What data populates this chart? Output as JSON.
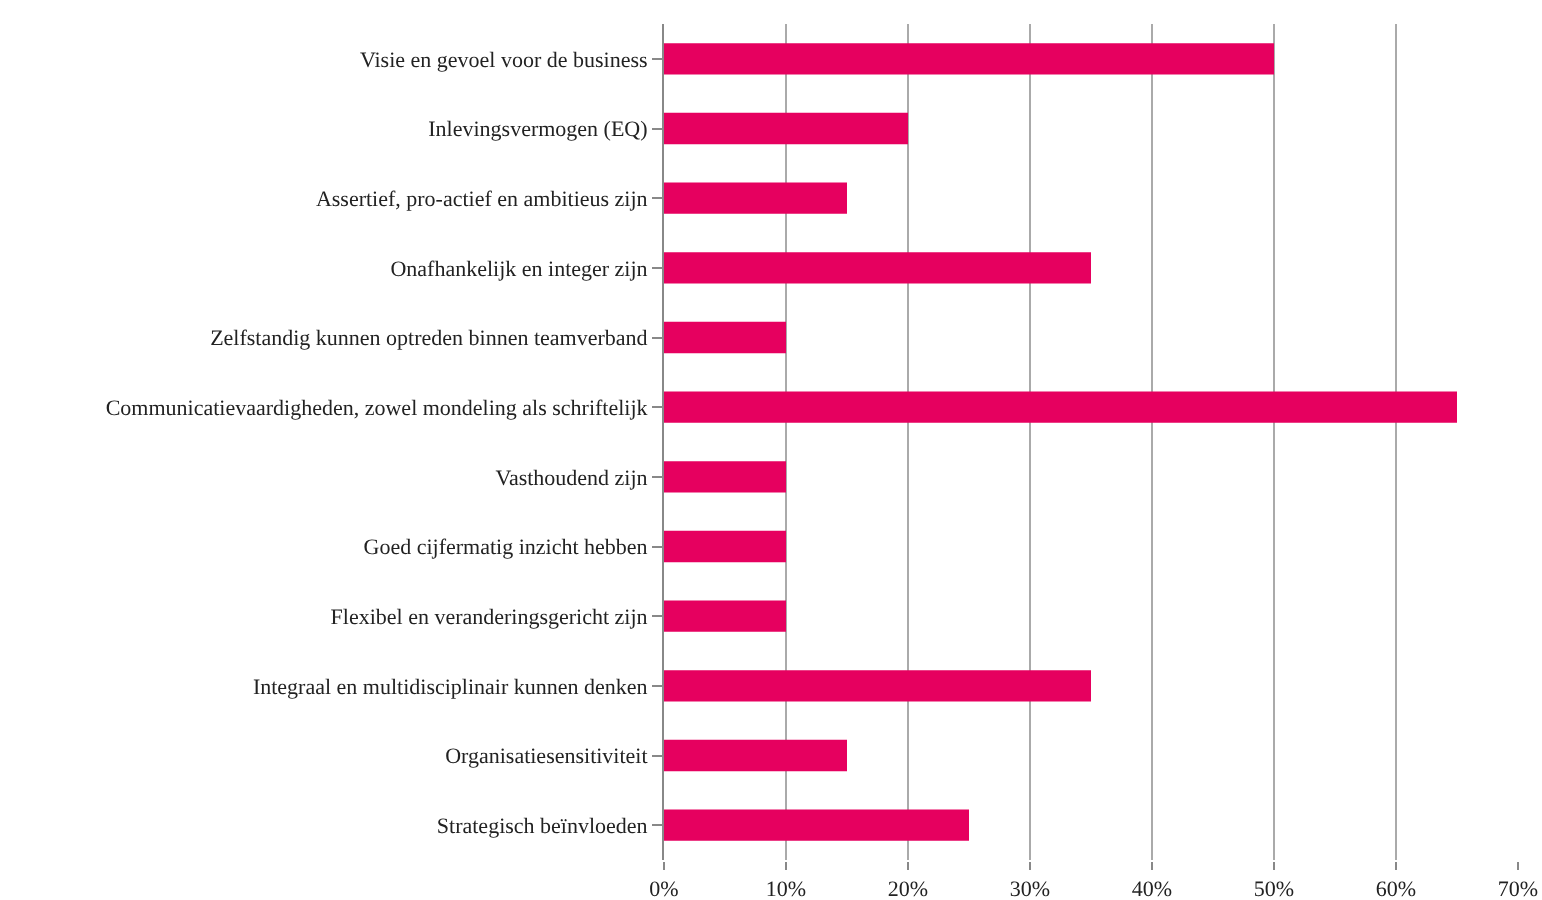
{
  "chart_data": {
    "type": "bar",
    "orientation": "horizontal",
    "categories": [
      "Visie en gevoel voor de business",
      "Inlevingsvermogen (EQ)",
      "Assertief, pro-actief en ambitieus zijn",
      "Onafhankelijk en integer zijn",
      "Zelfstandig kunnen optreden binnen teamverband",
      "Communicatievaardigheden, zowel mondeling als schriftelijk",
      "Vasthoudend zijn",
      "Goed cijfermatig inzicht hebben",
      "Flexibel en veranderingsgericht zijn",
      "Integraal en multidisciplinair kunnen denken",
      "Organisatiesensitiviteit",
      "Strategisch beïnvloeden"
    ],
    "values": [
      50,
      20,
      15,
      35,
      10,
      65,
      10,
      10,
      10,
      35,
      15,
      25
    ],
    "color": "#e6005f",
    "xlim": [
      0,
      70
    ],
    "xticks": [
      {
        "value": 0,
        "label": "0%"
      },
      {
        "value": 10,
        "label": "10%"
      },
      {
        "value": 20,
        "label": "20%"
      },
      {
        "value": 30,
        "label": "30%"
      },
      {
        "value": 40,
        "label": "40%"
      },
      {
        "value": 50,
        "label": "50%"
      },
      {
        "value": 60,
        "label": "60%"
      },
      {
        "value": 70,
        "label": "70%"
      }
    ],
    "grid": "x"
  }
}
